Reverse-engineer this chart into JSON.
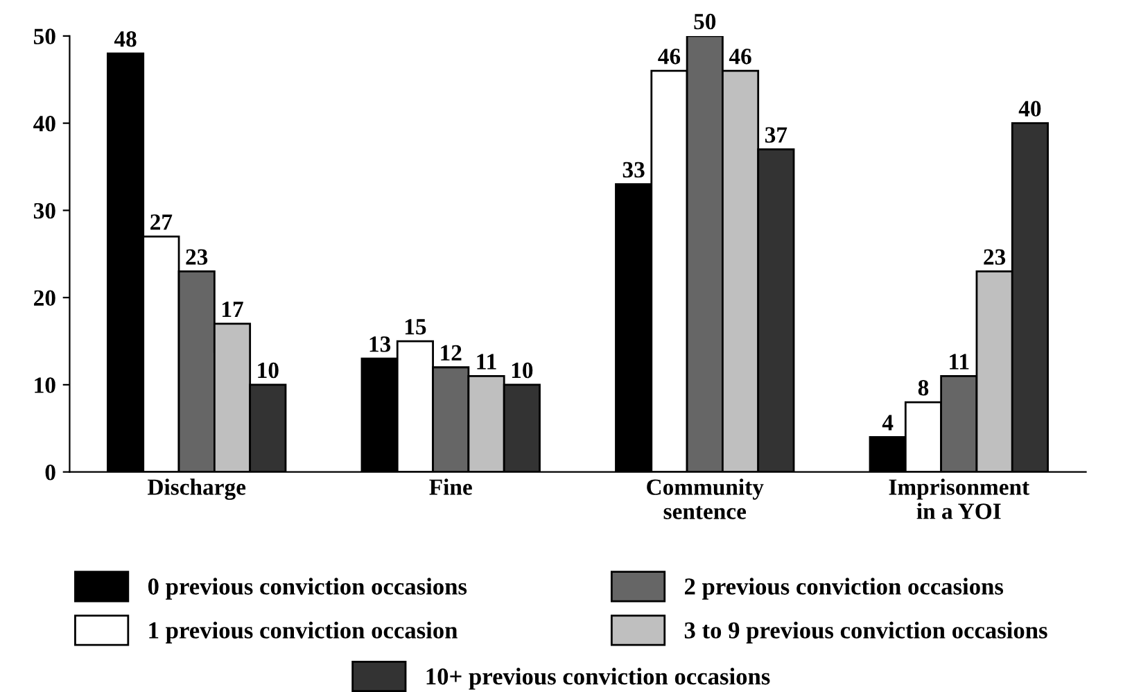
{
  "chart_data": {
    "type": "bar",
    "categories": [
      "Discharge",
      "Fine",
      "Community\nsentence",
      "Imprisonment\nin a YOI"
    ],
    "series": [
      {
        "name": "0 previous conviction occasions",
        "color": "#000000",
        "values": [
          48,
          13,
          33,
          4
        ]
      },
      {
        "name": "1 previous conviction occasion",
        "color": "#ffffff",
        "values": [
          27,
          15,
          46,
          8
        ]
      },
      {
        "name": "2 previous conviction occasions",
        "color": "#666666",
        "values": [
          23,
          12,
          50,
          11
        ]
      },
      {
        "name": "3 to 9 previous conviction occasions",
        "color": "#bfbfbf",
        "values": [
          17,
          11,
          46,
          23
        ]
      },
      {
        "name": "10+ previous conviction occasions",
        "color": "#333333",
        "values": [
          10,
          10,
          37,
          40
        ]
      }
    ],
    "ylim": [
      0,
      50
    ],
    "yticks": [
      0,
      10,
      20,
      30,
      40,
      50
    ],
    "data_labels": true,
    "grid": false,
    "legend": "bottom"
  }
}
